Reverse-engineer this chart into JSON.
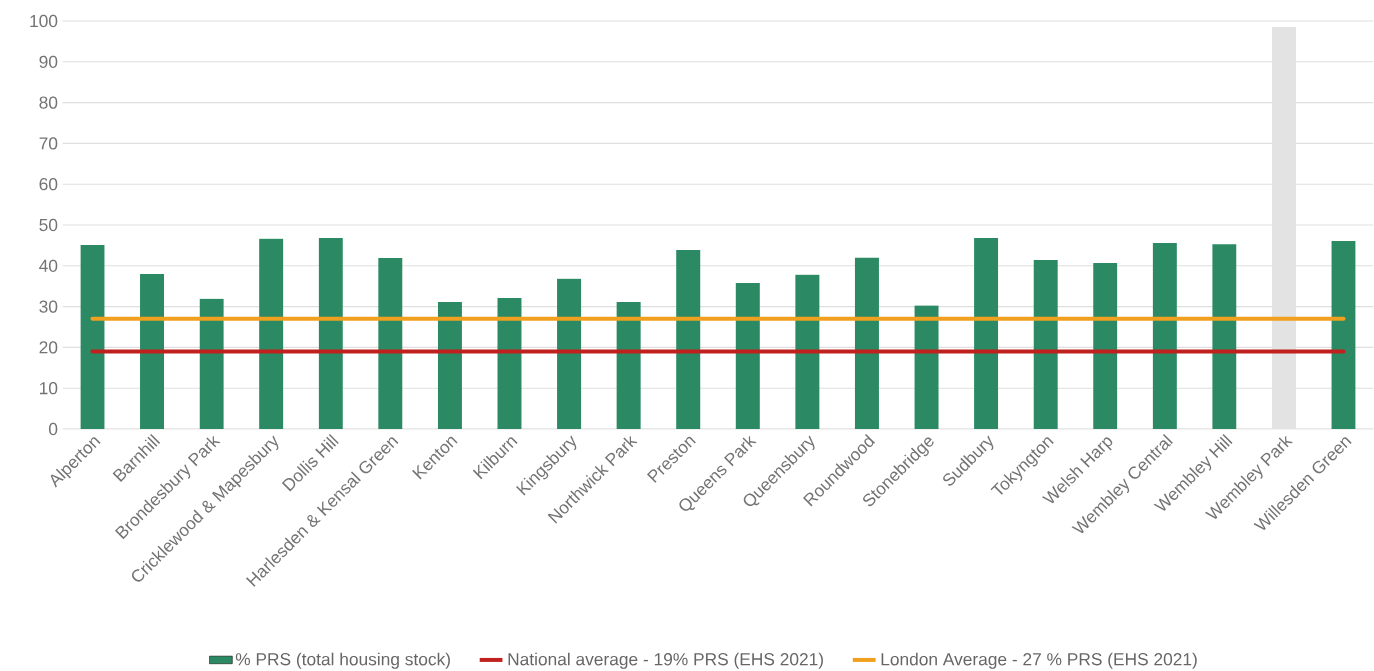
{
  "chart_data": {
    "type": "bar",
    "categories": [
      "Alperton",
      "Barnhill",
      "Brondesbury Park",
      "Cricklewood & Mapesbury",
      "Dollis Hill",
      "Harlesden & Kensal Green",
      "Kenton",
      "Kilburn",
      "Kingsbury",
      "Northwick Park",
      "Preston",
      "Queens Park",
      "Queensbury",
      "Roundwood",
      "Stonebridge",
      "Sudbury",
      "Tokyngton",
      "Welsh Harp",
      "Wembley Central",
      "Wembley Hill",
      "Wembley Park",
      "Willesden Green"
    ],
    "series": [
      {
        "name": "% PRS (total housing stock)",
        "colors": [
          "#2b8a63",
          "#2b8a63",
          "#2b8a63",
          "#2b8a63",
          "#2b8a63",
          "#2b8a63",
          "#2b8a63",
          "#2b8a63",
          "#2b8a63",
          "#2b8a63",
          "#2b8a63",
          "#2b8a63",
          "#2b8a63",
          "#2b8a63",
          "#2b8a63",
          "#2b8a63",
          "#2b8a63",
          "#2b8a63",
          "#2b8a63",
          "#2b8a63",
          "#e3e3e3",
          "#2b8a63"
        ],
        "values": [
          45.1,
          38,
          31.9,
          46.6,
          46.8,
          41.9,
          31.1,
          32.1,
          36.8,
          31.1,
          43.9,
          35.8,
          37.8,
          42,
          30.3,
          46.8,
          41.4,
          40.7,
          45.6,
          45.3,
          98.5,
          46.1
        ]
      },
      {
        "name": "National average - 19% PRS (EHS 2021)",
        "type": "line",
        "color": "#c0201e",
        "values": [
          19,
          19,
          19,
          19,
          19,
          19,
          19,
          19,
          19,
          19,
          19,
          19,
          19,
          19,
          19,
          19,
          19,
          19,
          19,
          19,
          19,
          19
        ]
      },
      {
        "name": "London Average - 27 % PRS (EHS 2021)",
        "type": "line",
        "color": "#f0a01e",
        "values": [
          27,
          27,
          27,
          27,
          27,
          27,
          27,
          27,
          27,
          27,
          27,
          27,
          27,
          27,
          27,
          27,
          27,
          27,
          27,
          27,
          27,
          27
        ]
      }
    ],
    "ylim": [
      0,
      100
    ],
    "yticks": [
      0,
      10,
      20,
      30,
      40,
      50,
      60,
      70,
      80,
      90,
      100
    ],
    "grid": "y",
    "legend": "bottom",
    "marker": "none",
    "line_style": "solid"
  }
}
